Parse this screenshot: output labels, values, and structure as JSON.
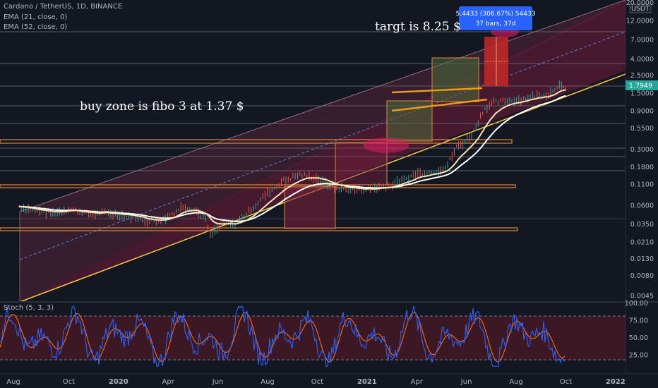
{
  "chart_data": {
    "type": "line",
    "title": "Cardano / TetherUS, 1D, BINANCE",
    "indicators": [
      {
        "label": "EMA (21, close, 0)",
        "color": "#f6e3b3"
      },
      {
        "label": "EMA (52, close, 0)",
        "color": "#ffffff"
      }
    ],
    "y_scale": "log",
    "y_unit": "USDT",
    "y_ticks": [
      20.0,
      12.0,
      7.0,
      4.0,
      2.5,
      1.5,
      0.9,
      0.55,
      0.3,
      0.18,
      0.11,
      0.06,
      0.035,
      0.021,
      0.013,
      0.008,
      0.0045
    ],
    "y_tick_labels": [
      "20.0000",
      "12.0000",
      "7.0000",
      "4.0000",
      "2.5000",
      "1.5000",
      "0.9000",
      "0.5500",
      "0.3000",
      "0.1800",
      "0.1100",
      "0.0600",
      "0.0350",
      "0.0210",
      "0.0130",
      "0.0080",
      "0.0045"
    ],
    "x_tick_labels": [
      "Aug",
      "Oct",
      "2020",
      "Apr",
      "Jun",
      "Aug",
      "Oct",
      "2021",
      "Apr",
      "Jun",
      "Aug",
      "Oct",
      "2022"
    ],
    "last_price": 1.7949,
    "last_price_label": "1.7949",
    "price_series": [
      {
        "t": 0.0,
        "v": 0.058
      },
      {
        "t": 0.6,
        "v": 0.052
      },
      {
        "t": 1.4,
        "v": 0.048
      },
      {
        "t": 2.0,
        "v": 0.054
      },
      {
        "t": 2.8,
        "v": 0.047
      },
      {
        "t": 3.6,
        "v": 0.048
      },
      {
        "t": 4.6,
        "v": 0.043
      },
      {
        "t": 5.2,
        "v": 0.038
      },
      {
        "t": 5.8,
        "v": 0.04
      },
      {
        "t": 6.6,
        "v": 0.058
      },
      {
        "t": 7.0,
        "v": 0.055
      },
      {
        "t": 7.5,
        "v": 0.04
      },
      {
        "t": 7.7,
        "v": 0.025
      },
      {
        "t": 8.2,
        "v": 0.036
      },
      {
        "t": 8.6,
        "v": 0.034
      },
      {
        "t": 9.2,
        "v": 0.048
      },
      {
        "t": 9.9,
        "v": 0.08
      },
      {
        "t": 10.6,
        "v": 0.12
      },
      {
        "t": 11.3,
        "v": 0.145
      },
      {
        "t": 12.0,
        "v": 0.13
      },
      {
        "t": 12.6,
        "v": 0.1
      },
      {
        "t": 13.2,
        "v": 0.095
      },
      {
        "t": 14.0,
        "v": 0.095
      },
      {
        "t": 14.8,
        "v": 0.105
      },
      {
        "t": 15.4,
        "v": 0.12
      },
      {
        "t": 16.0,
        "v": 0.15
      },
      {
        "t": 16.6,
        "v": 0.155
      },
      {
        "t": 17.2,
        "v": 0.18
      },
      {
        "t": 17.6,
        "v": 0.32
      },
      {
        "t": 17.9,
        "v": 0.36
      },
      {
        "t": 18.3,
        "v": 0.5
      },
      {
        "t": 18.7,
        "v": 0.95
      },
      {
        "t": 19.1,
        "v": 1.15
      },
      {
        "t": 19.6,
        "v": 1.2
      },
      {
        "t": 20.2,
        "v": 1.25
      },
      {
        "t": 20.8,
        "v": 1.4
      },
      {
        "t": 21.3,
        "v": 1.45
      },
      {
        "t": 21.7,
        "v": 1.9
      },
      {
        "t": 22.0,
        "v": 1.65
      }
    ],
    "stoch": {
      "label": "Stoch (5, 3, 3)",
      "y_ticks": [
        100.0,
        75.0,
        50.0,
        25.0
      ],
      "y_tick_labels": [
        "100.00",
        "75.00",
        "50.00",
        "25.00"
      ],
      "upper_band": 80,
      "lower_band": 20
    },
    "annotations": [
      {
        "text": "targt is 8.25 $"
      },
      {
        "text": "buy zone is fibo 3 at 1.37 $"
      }
    ],
    "measure_label": {
      "line1": "5.4433 (306.67%) 54433",
      "line2": "37 bars, 37d"
    },
    "horizontal_levels": [
      1.37,
      0.33,
      0.105,
      0.031
    ],
    "colors": {
      "background": "#131722",
      "channel_fill": "#5c1a33",
      "trendline": "#f5c143",
      "level_line": "#e0873a",
      "ema_fast": "#f6e3b3",
      "ema_slow": "#ffffff",
      "price": "#26a69a",
      "stoch_k": "#2962ff",
      "stoch_d": "#ff6d00",
      "label_box": "#2962ff"
    }
  }
}
